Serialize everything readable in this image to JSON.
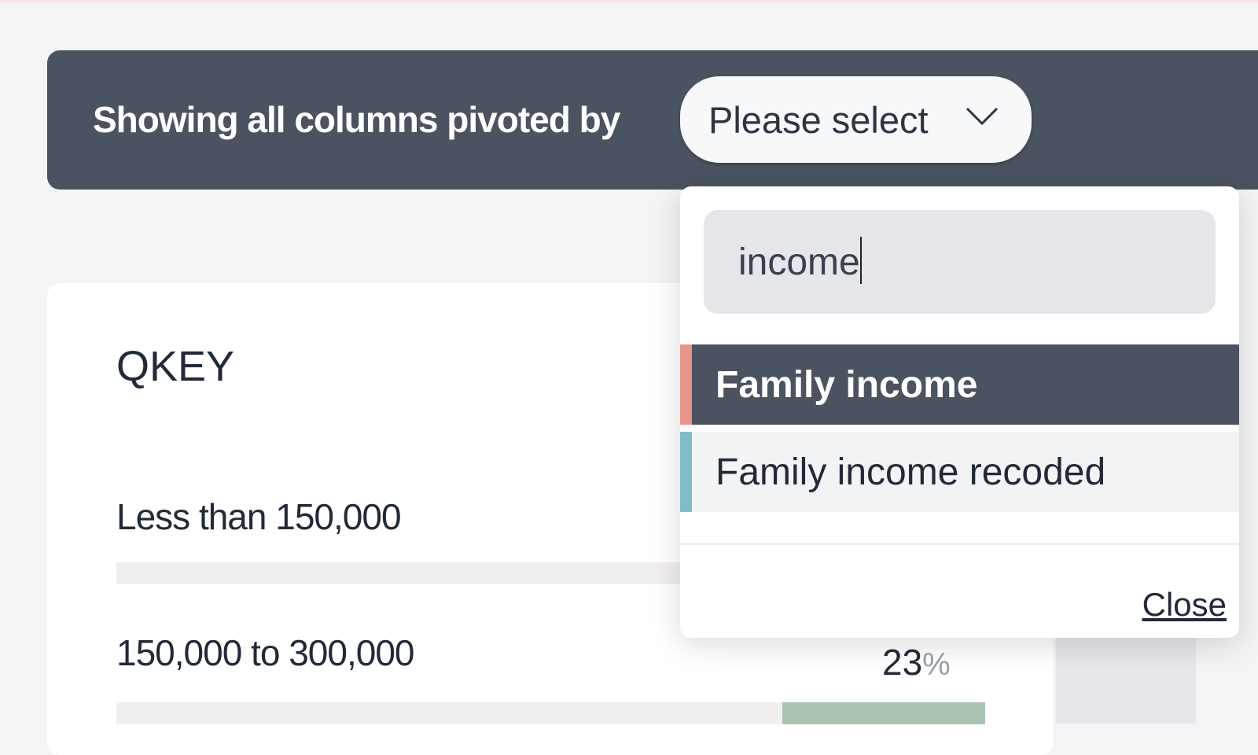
{
  "header": {
    "label": "Showing all columns pivoted by",
    "select_value": "Please select"
  },
  "card": {
    "title": "QKEY",
    "rows": [
      {
        "label": "Less than 150,000"
      },
      {
        "label": "150,000 to 300,000",
        "percent": "23",
        "unit": "%",
        "fill_percent": 23
      }
    ]
  },
  "dropdown": {
    "search_value": "income",
    "options": [
      {
        "label": "Family income",
        "accent": "#e8958a",
        "selected": true
      },
      {
        "label": "Family income recoded",
        "accent": "#7fbccc",
        "selected": false
      }
    ],
    "close_label": "Close"
  },
  "colors": {
    "banner": "#4b5361",
    "bar_fill": "#a9c2b2"
  }
}
